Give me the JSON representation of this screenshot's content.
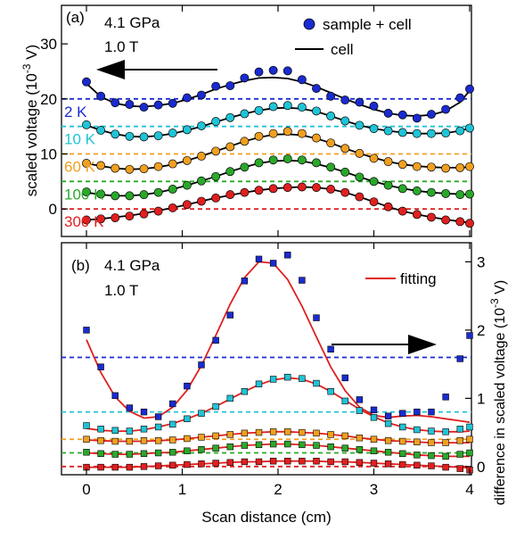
{
  "chart_data": [
    {
      "type": "line",
      "panel_label": "(a)",
      "annotation_lines": [
        "4.1 GPa",
        "1.0 T"
      ],
      "xlim": [
        0,
        4
      ],
      "ylim": [
        -5,
        37
      ],
      "yticks": [
        0,
        10,
        20,
        30
      ],
      "ylabel_text": "scaled voltage (10",
      "ylabel_exp": "-3",
      "ylabel_tail": " V)",
      "legend": {
        "markers_label": "sample + cell",
        "line_label": "cell",
        "position": "top-right"
      },
      "arrow_direction": "left",
      "series": [
        {
          "name": "2 K",
          "color": "#1a2bd0",
          "offset": 20,
          "x": [
            0,
            0.15,
            0.3,
            0.45,
            0.6,
            0.75,
            0.9,
            1.05,
            1.2,
            1.35,
            1.5,
            1.65,
            1.8,
            1.95,
            2.1,
            2.25,
            2.4,
            2.55,
            2.7,
            2.85,
            3.0,
            3.15,
            3.3,
            3.45,
            3.6,
            3.75,
            3.9,
            4.0
          ],
          "y": [
            23.1,
            20.5,
            19.3,
            19.0,
            18.5,
            18.9,
            19.2,
            20.2,
            20.7,
            22.3,
            22.4,
            23.8,
            24.9,
            25.2,
            25.1,
            23.5,
            21.9,
            20.5,
            19.8,
            19.4,
            18.7,
            17.4,
            17.1,
            16.5,
            17.2,
            18.1,
            20.2,
            21.8
          ],
          "fit_y": [
            22.8,
            20.4,
            19.2,
            18.7,
            18.6,
            18.8,
            19.2,
            19.9,
            20.8,
            21.8,
            22.6,
            23.3,
            23.8,
            23.9,
            23.7,
            23.1,
            22.2,
            21.1,
            20.0,
            19.0,
            18.1,
            17.4,
            17.0,
            16.9,
            17.1,
            17.8,
            19.4,
            21.5
          ]
        },
        {
          "name": "10 K",
          "color": "#1fc4d6",
          "offset": 15,
          "x": [
            0,
            0.15,
            0.3,
            0.45,
            0.6,
            0.75,
            0.9,
            1.05,
            1.2,
            1.35,
            1.5,
            1.65,
            1.8,
            1.95,
            2.1,
            2.25,
            2.4,
            2.55,
            2.7,
            2.85,
            3.0,
            3.15,
            3.3,
            3.45,
            3.6,
            3.75,
            3.9,
            4.0
          ],
          "y": [
            15.3,
            14.3,
            13.6,
            13.2,
            13.1,
            13.3,
            13.8,
            14.4,
            15.1,
            15.9,
            16.6,
            17.3,
            17.9,
            18.6,
            18.8,
            18.5,
            17.8,
            16.9,
            16.0,
            15.2,
            14.6,
            14.2,
            13.9,
            13.7,
            13.7,
            13.8,
            14.2,
            14.7
          ],
          "fit_y": [
            15.2,
            14.3,
            13.6,
            13.2,
            13.1,
            13.3,
            13.7,
            14.3,
            15.0,
            15.8,
            16.6,
            17.3,
            17.9,
            18.3,
            18.4,
            18.2,
            17.7,
            16.9,
            16.0,
            15.2,
            14.6,
            14.2,
            13.9,
            13.7,
            13.7,
            13.8,
            14.2,
            14.7
          ]
        },
        {
          "name": "60 K",
          "color": "#f0a020",
          "offset": 10,
          "x": [
            0,
            0.15,
            0.3,
            0.45,
            0.6,
            0.75,
            0.9,
            1.05,
            1.2,
            1.35,
            1.5,
            1.65,
            1.8,
            1.95,
            2.1,
            2.25,
            2.4,
            2.55,
            2.7,
            2.85,
            3.0,
            3.15,
            3.3,
            3.45,
            3.6,
            3.75,
            3.9,
            4.0
          ],
          "y": [
            8.3,
            7.9,
            7.4,
            7.2,
            7.3,
            7.7,
            8.2,
            8.8,
            9.6,
            10.5,
            11.3,
            12.3,
            13.2,
            13.7,
            14.1,
            13.7,
            12.9,
            12.0,
            11.0,
            10.1,
            9.2,
            8.6,
            8.1,
            7.7,
            7.6,
            7.4,
            7.5,
            7.7
          ],
          "fit_y": [
            8.3,
            7.8,
            7.4,
            7.2,
            7.3,
            7.6,
            8.1,
            8.8,
            9.6,
            10.5,
            11.4,
            12.3,
            13.0,
            13.5,
            13.6,
            13.4,
            12.8,
            12.0,
            11.0,
            10.1,
            9.3,
            8.6,
            8.1,
            7.8,
            7.6,
            7.5,
            7.5,
            7.6
          ]
        },
        {
          "name": "100 K",
          "color": "#2aa82a",
          "offset": 5,
          "x": [
            0,
            0.15,
            0.3,
            0.45,
            0.6,
            0.75,
            0.9,
            1.05,
            1.2,
            1.35,
            1.5,
            1.65,
            1.8,
            1.95,
            2.1,
            2.25,
            2.4,
            2.55,
            2.7,
            2.85,
            3.0,
            3.15,
            3.3,
            3.45,
            3.6,
            3.75,
            3.9,
            4.0
          ],
          "y": [
            3.1,
            2.7,
            2.4,
            2.4,
            2.6,
            3.0,
            3.6,
            4.3,
            5.1,
            5.9,
            6.8,
            7.6,
            8.4,
            8.9,
            9.1,
            8.9,
            8.4,
            7.6,
            6.7,
            5.8,
            5.0,
            4.3,
            3.7,
            3.3,
            3.0,
            2.8,
            2.6,
            2.7
          ],
          "fit_y": [
            3.0,
            2.6,
            2.4,
            2.4,
            2.6,
            3.0,
            3.6,
            4.3,
            5.1,
            5.9,
            6.8,
            7.6,
            8.3,
            8.7,
            8.8,
            8.7,
            8.2,
            7.5,
            6.7,
            5.8,
            5.0,
            4.3,
            3.7,
            3.3,
            3.0,
            2.8,
            2.7,
            2.6
          ]
        },
        {
          "name": "300 K",
          "color": "#e02020",
          "offset": 0,
          "x": [
            0,
            0.15,
            0.3,
            0.45,
            0.6,
            0.75,
            0.9,
            1.05,
            1.2,
            1.35,
            1.5,
            1.65,
            1.8,
            1.95,
            2.1,
            2.25,
            2.4,
            2.55,
            2.7,
            2.85,
            3.0,
            3.15,
            3.3,
            3.45,
            3.6,
            3.75,
            3.9,
            4.0
          ],
          "y": [
            -2.0,
            -1.8,
            -1.6,
            -1.3,
            -0.9,
            -0.4,
            0.2,
            0.8,
            1.4,
            2.0,
            2.6,
            3.0,
            3.4,
            3.7,
            3.9,
            4.0,
            3.9,
            3.6,
            3.0,
            2.2,
            1.3,
            0.4,
            -0.4,
            -1.0,
            -1.5,
            -2.0,
            -2.3,
            -2.6
          ],
          "fit_y": [
            -2.0,
            -1.8,
            -1.5,
            -1.2,
            -0.8,
            -0.3,
            0.2,
            0.8,
            1.4,
            2.0,
            2.5,
            3.0,
            3.4,
            3.7,
            3.9,
            4.0,
            3.9,
            3.6,
            3.0,
            2.2,
            1.3,
            0.4,
            -0.4,
            -1.0,
            -1.5,
            -1.9,
            -2.3,
            -2.5
          ]
        }
      ]
    },
    {
      "type": "scatter",
      "panel_label": "(b)",
      "annotation_lines": [
        "4.1 GPa",
        "1.0 T"
      ],
      "xlabel": "Scan distance (cm)",
      "xlim": [
        0,
        4
      ],
      "xticks": [
        0,
        1,
        2,
        3,
        4
      ],
      "ylim": [
        -0.12,
        3.28
      ],
      "yticks": [
        0,
        1,
        2,
        3
      ],
      "ylabel_text": "difference in scaled voltage (10",
      "ylabel_exp": "-3",
      "ylabel_tail": " V)",
      "legend": {
        "line_label": "fitting",
        "line_color": "#e02020",
        "position": "top-right"
      },
      "arrow_direction": "right",
      "series": [
        {
          "name": "2 K",
          "color": "#1a2bd0",
          "offset": 1.6,
          "x": [
            0,
            0.15,
            0.3,
            0.45,
            0.6,
            0.75,
            0.9,
            1.05,
            1.2,
            1.35,
            1.5,
            1.65,
            1.8,
            1.95,
            2.1,
            2.25,
            2.4,
            2.55,
            2.7,
            2.85,
            3.0,
            3.15,
            3.3,
            3.45,
            3.6,
            3.75,
            3.9,
            4.0
          ],
          "y": [
            2.0,
            1.46,
            1.04,
            0.86,
            0.8,
            0.73,
            0.92,
            1.18,
            1.49,
            1.85,
            2.22,
            2.72,
            3.04,
            2.98,
            3.1,
            2.73,
            2.18,
            1.72,
            1.3,
            0.98,
            0.83,
            0.74,
            0.78,
            0.8,
            0.8,
            1.02,
            1.58,
            1.92
          ],
          "fit_y": [
            1.86,
            1.38,
            1.02,
            0.81,
            0.71,
            0.73,
            0.87,
            1.12,
            1.48,
            1.92,
            2.38,
            2.77,
            3.0,
            2.98,
            2.74,
            2.35,
            1.9,
            1.46,
            1.11,
            0.87,
            0.75,
            0.72,
            0.74,
            0.75,
            0.73,
            0.7,
            0.67,
            0.65
          ]
        },
        {
          "name": "10 K",
          "color": "#1fc4d6",
          "offset": 0.8,
          "x": [
            0,
            0.15,
            0.3,
            0.45,
            0.6,
            0.75,
            0.9,
            1.05,
            1.2,
            1.35,
            1.5,
            1.65,
            1.8,
            1.95,
            2.1,
            2.25,
            2.4,
            2.55,
            2.7,
            2.85,
            3.0,
            3.15,
            3.3,
            3.45,
            3.6,
            3.75,
            3.9,
            4.0
          ],
          "y": [
            0.6,
            0.55,
            0.53,
            0.52,
            0.55,
            0.58,
            0.62,
            0.7,
            0.78,
            0.88,
            1.0,
            1.1,
            1.21,
            1.28,
            1.31,
            1.29,
            1.22,
            1.1,
            0.96,
            0.82,
            0.72,
            0.63,
            0.58,
            0.54,
            0.52,
            0.51,
            0.55,
            0.58
          ],
          "fit_y": [
            0.56,
            0.53,
            0.52,
            0.52,
            0.54,
            0.58,
            0.63,
            0.7,
            0.78,
            0.88,
            0.99,
            1.1,
            1.2,
            1.27,
            1.3,
            1.28,
            1.21,
            1.1,
            0.97,
            0.84,
            0.73,
            0.64,
            0.58,
            0.54,
            0.52,
            0.51,
            0.51,
            0.52
          ]
        },
        {
          "name": "60 K",
          "color": "#f0a020",
          "offset": 0.4,
          "x": [
            0,
            0.15,
            0.3,
            0.45,
            0.6,
            0.75,
            0.9,
            1.05,
            1.2,
            1.35,
            1.5,
            1.65,
            1.8,
            1.95,
            2.1,
            2.25,
            2.4,
            2.55,
            2.7,
            2.85,
            3.0,
            3.15,
            3.3,
            3.45,
            3.6,
            3.75,
            3.9,
            4.0
          ],
          "y": [
            0.4,
            0.38,
            0.37,
            0.37,
            0.38,
            0.38,
            0.39,
            0.41,
            0.43,
            0.45,
            0.47,
            0.49,
            0.5,
            0.51,
            0.51,
            0.5,
            0.49,
            0.47,
            0.45,
            0.42,
            0.4,
            0.38,
            0.37,
            0.36,
            0.35,
            0.35,
            0.38,
            0.4
          ],
          "fit_y": [
            0.39,
            0.38,
            0.37,
            0.37,
            0.37,
            0.38,
            0.39,
            0.41,
            0.43,
            0.45,
            0.47,
            0.49,
            0.5,
            0.51,
            0.51,
            0.5,
            0.49,
            0.47,
            0.45,
            0.42,
            0.4,
            0.38,
            0.37,
            0.36,
            0.35,
            0.35,
            0.35,
            0.35
          ]
        },
        {
          "name": "100 K",
          "color": "#2aa82a",
          "offset": 0.2,
          "x": [
            0,
            0.15,
            0.3,
            0.45,
            0.6,
            0.75,
            0.9,
            1.05,
            1.2,
            1.35,
            1.5,
            1.65,
            1.8,
            1.95,
            2.1,
            2.25,
            2.4,
            2.55,
            2.7,
            2.85,
            3.0,
            3.15,
            3.3,
            3.45,
            3.6,
            3.75,
            3.9,
            4.0
          ],
          "y": [
            0.21,
            0.19,
            0.18,
            0.18,
            0.19,
            0.2,
            0.21,
            0.23,
            0.25,
            0.27,
            0.29,
            0.31,
            0.32,
            0.33,
            0.33,
            0.32,
            0.31,
            0.29,
            0.27,
            0.25,
            0.23,
            0.21,
            0.19,
            0.17,
            0.16,
            0.15,
            0.18,
            0.2
          ],
          "fit_y": [
            0.2,
            0.19,
            0.18,
            0.18,
            0.19,
            0.2,
            0.21,
            0.23,
            0.25,
            0.27,
            0.29,
            0.31,
            0.32,
            0.33,
            0.33,
            0.32,
            0.31,
            0.29,
            0.27,
            0.25,
            0.23,
            0.21,
            0.19,
            0.17,
            0.16,
            0.15,
            0.15,
            0.15
          ]
        },
        {
          "name": "300 K",
          "color": "#e02020",
          "offset": 0.0,
          "x": [
            0,
            0.15,
            0.3,
            0.45,
            0.6,
            0.75,
            0.9,
            1.05,
            1.2,
            1.35,
            1.5,
            1.65,
            1.8,
            1.95,
            2.1,
            2.25,
            2.4,
            2.55,
            2.7,
            2.85,
            3.0,
            3.15,
            3.3,
            3.45,
            3.6,
            3.75,
            3.9,
            4.0
          ],
          "y": [
            -0.01,
            -0.01,
            -0.01,
            -0.01,
            0.0,
            0.01,
            0.02,
            0.03,
            0.04,
            0.05,
            0.06,
            0.07,
            0.07,
            0.08,
            0.08,
            0.08,
            0.08,
            0.07,
            0.07,
            0.06,
            0.05,
            0.04,
            0.03,
            0.02,
            0.01,
            -0.01,
            -0.03,
            -0.05
          ],
          "fit_y": [
            -0.01,
            -0.01,
            -0.01,
            -0.01,
            0.0,
            0.01,
            0.02,
            0.03,
            0.04,
            0.05,
            0.06,
            0.07,
            0.07,
            0.08,
            0.08,
            0.08,
            0.08,
            0.07,
            0.07,
            0.06,
            0.05,
            0.04,
            0.03,
            0.02,
            0.01,
            0.0,
            -0.01,
            -0.02
          ]
        }
      ]
    }
  ]
}
